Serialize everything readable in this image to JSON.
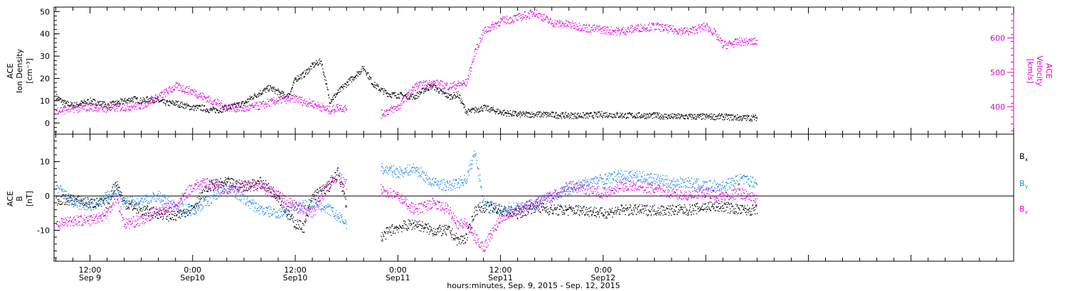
{
  "chart_data": [
    {
      "type": "scatter",
      "panel": "top",
      "ylabel_lines": [
        "ACE",
        "Ion Density",
        "[cm⁻³]"
      ],
      "y2label_lines": [
        "ACE",
        "Velocity",
        "[km/s]"
      ],
      "ylim": [
        -5,
        52
      ],
      "y2lim": [
        320,
        690
      ],
      "yticks": [
        0,
        10,
        20,
        30,
        40,
        50
      ],
      "y2ticks": [
        400,
        500,
        600
      ],
      "series": [
        {
          "color": "#000000",
          "axis": "left",
          "x": [
            8,
            9,
            10,
            11,
            12,
            13,
            14,
            15,
            16,
            17,
            18,
            19,
            20,
            21,
            22,
            23,
            24,
            25,
            26,
            27,
            28,
            29,
            30,
            31,
            32,
            33,
            34,
            35,
            35.5,
            36,
            37,
            38,
            39,
            40,
            41,
            42,
            44,
            45,
            46,
            47,
            50,
            51,
            52,
            53,
            54,
            55,
            56,
            57,
            58,
            60,
            62,
            65,
            68,
            70,
            72,
            75,
            78,
            80,
            82,
            84,
            86,
            88,
            90
          ],
          "y": [
            12,
            9,
            8,
            9,
            10,
            9,
            8,
            9,
            10,
            11,
            10,
            11,
            10,
            9,
            9,
            8,
            7,
            7,
            6,
            6,
            7,
            8,
            9,
            12,
            14,
            16,
            14,
            12,
            15,
            20,
            22,
            26,
            28,
            10,
            14,
            18,
            25,
            18,
            15,
            13,
            12,
            15,
            17,
            14,
            12,
            13,
            5,
            6,
            7,
            5,
            4,
            4,
            3.5,
            3.5,
            4,
            3.5,
            3.5,
            3,
            3,
            3,
            3,
            2.5,
            2.5
          ]
        },
        {
          "color": "#dd00dd",
          "axis": "right",
          "x": [
            8,
            10,
            12,
            14,
            16,
            18,
            20,
            22,
            24,
            26,
            28,
            30,
            32,
            34,
            36,
            37,
            38,
            40,
            41,
            42,
            46,
            48,
            50,
            52,
            54,
            55,
            56,
            57,
            58,
            60,
            62,
            64,
            66,
            68,
            70,
            72,
            74,
            76,
            78,
            80,
            82,
            84,
            85,
            86,
            88,
            90
          ],
          "y": [
            390,
            395,
            400,
            395,
            400,
            405,
            430,
            460,
            445,
            420,
            400,
            395,
            405,
            420,
            425,
            415,
            410,
            390,
            400,
            395,
            380,
            400,
            460,
            470,
            460,
            465,
            470,
            560,
            620,
            650,
            660,
            675,
            645,
            640,
            630,
            625,
            620,
            630,
            635,
            625,
            620,
            635,
            615,
            580,
            590,
            590
          ]
        }
      ]
    },
    {
      "type": "scatter",
      "panel": "bottom",
      "ylabel_lines": [
        "ACE",
        "B",
        "[nT]"
      ],
      "ylim": [
        -19,
        18
      ],
      "yticks": [
        -10,
        0,
        10
      ],
      "legend": [
        {
          "label": "B",
          "sub": "x",
          "color": "#000000"
        },
        {
          "label": "B",
          "sub": "y",
          "color": "#1e88e5"
        },
        {
          "label": "B",
          "sub": "z",
          "color": "#dd00dd"
        }
      ],
      "series": [
        {
          "color": "#000000",
          "x": [
            8,
            10,
            12,
            14,
            15,
            16,
            18,
            20,
            22,
            24,
            26,
            28,
            30,
            32,
            34,
            35,
            36,
            37,
            38,
            40,
            41,
            42,
            46,
            47,
            48,
            50,
            52,
            54,
            55,
            56,
            57,
            58,
            60,
            62,
            64,
            66,
            68,
            70,
            72,
            74,
            76,
            78,
            80,
            82,
            84,
            86,
            88,
            90
          ],
          "y": [
            -1,
            -1,
            -2,
            -2,
            4,
            -2,
            -4,
            -5,
            -6,
            -3,
            3,
            4,
            3,
            4,
            0,
            -5,
            -8,
            -9,
            0,
            3,
            7,
            -3,
            -12,
            -10,
            -9,
            -8,
            -10,
            -10,
            -13,
            -12,
            -4,
            -3,
            -4,
            -5,
            -3,
            -4,
            -4,
            -4,
            -5,
            -4,
            -4,
            -4,
            -4,
            -4,
            -3,
            -3,
            -4,
            -4
          ]
        },
        {
          "color": "#1e88e5",
          "x": [
            8,
            10,
            12,
            14,
            15,
            16,
            18,
            20,
            22,
            24,
            26,
            28,
            30,
            32,
            34,
            36,
            38,
            40,
            42,
            46,
            48,
            50,
            52,
            54,
            56,
            57,
            58,
            60,
            62,
            64,
            66,
            68,
            70,
            72,
            74,
            76,
            78,
            80,
            82,
            84,
            86,
            88,
            90
          ],
          "y": [
            3,
            -2,
            -3,
            0,
            2,
            -2,
            -1,
            0,
            -3,
            -4,
            -1,
            3,
            -1,
            -4,
            -5,
            -3,
            -2,
            -4,
            -8,
            8,
            7,
            8,
            4,
            3,
            5,
            13,
            -2,
            -4,
            -3,
            -2,
            0,
            2,
            4,
            5,
            6,
            6,
            5,
            4,
            4,
            3,
            3,
            5,
            4
          ]
        },
        {
          "color": "#dd00dd",
          "x": [
            8,
            10,
            12,
            14,
            15,
            16,
            18,
            20,
            22,
            24,
            26,
            28,
            30,
            32,
            34,
            36,
            38,
            40,
            41,
            42,
            46,
            48,
            50,
            52,
            54,
            55,
            56,
            57,
            58,
            60,
            62,
            64,
            66,
            68,
            70,
            72,
            74,
            76,
            78,
            80,
            82,
            84,
            86,
            88,
            90
          ],
          "y": [
            -8,
            -7,
            -7,
            -5,
            0,
            -8,
            -7,
            -4,
            -3,
            3,
            4,
            2,
            3,
            3,
            0,
            -3,
            -5,
            4,
            6,
            3,
            2,
            0,
            -4,
            -2,
            -4,
            -8,
            -8,
            -12,
            -15,
            -6,
            -4,
            -2,
            0,
            3,
            2,
            1,
            3,
            3,
            2,
            1,
            0,
            1,
            0,
            1,
            -1
          ]
        }
      ]
    }
  ],
  "xaxis": {
    "xlim": [
      7.8,
      120
    ],
    "major_ticks": [
      {
        "x": 12,
        "time": "12:00",
        "date": "Sep 9"
      },
      {
        "x": 24,
        "time": "0:00",
        "date": "Sep10"
      },
      {
        "x": 36,
        "time": "12:00",
        "date": "Sep10"
      },
      {
        "x": 48,
        "time": "0:00",
        "date": "Sep11"
      },
      {
        "x": 60,
        "time": "12:00",
        "date": "Sep11"
      },
      {
        "x": 72,
        "time": "0:00",
        "date": "Sep12"
      }
    ],
    "title": "hours:minutes, Sep.  9, 2015 - Sep. 12, 2015"
  }
}
